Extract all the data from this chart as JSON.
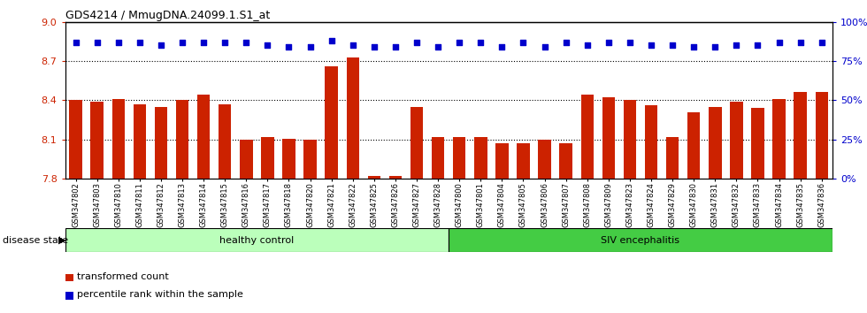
{
  "title": "GDS4214 / MmugDNA.24099.1.S1_at",
  "samples": [
    "GSM347802",
    "GSM347803",
    "GSM347810",
    "GSM347811",
    "GSM347812",
    "GSM347813",
    "GSM347814",
    "GSM347815",
    "GSM347816",
    "GSM347817",
    "GSM347818",
    "GSM347820",
    "GSM347821",
    "GSM347822",
    "GSM347825",
    "GSM347826",
    "GSM347827",
    "GSM347828",
    "GSM347800",
    "GSM347801",
    "GSM347804",
    "GSM347805",
    "GSM347806",
    "GSM347807",
    "GSM347808",
    "GSM347809",
    "GSM347823",
    "GSM347824",
    "GSM347829",
    "GSM347830",
    "GSM347831",
    "GSM347832",
    "GSM347833",
    "GSM347834",
    "GSM347835",
    "GSM347836"
  ],
  "bar_values": [
    8.4,
    8.39,
    8.41,
    8.37,
    8.35,
    8.4,
    8.44,
    8.37,
    8.1,
    8.12,
    8.105,
    8.1,
    8.66,
    8.73,
    7.82,
    7.82,
    8.35,
    8.12,
    8.12,
    8.12,
    8.07,
    8.07,
    8.1,
    8.07,
    8.44,
    8.42,
    8.4,
    8.36,
    8.12,
    8.31,
    8.35,
    8.39,
    8.34,
    8.41,
    8.46,
    8.46
  ],
  "percentile_values": [
    87,
    87,
    87,
    87,
    85,
    87,
    87,
    87,
    87,
    85,
    84,
    84,
    88,
    85,
    84,
    84,
    87,
    84,
    87,
    87,
    84,
    87,
    84,
    87,
    85,
    87,
    87,
    85,
    85,
    84,
    84,
    85,
    85,
    87,
    87,
    87
  ],
  "healthy_count": 18,
  "bar_color": "#cc2200",
  "dot_color": "#0000cc",
  "healthy_color": "#bbffbb",
  "siv_color": "#44cc44",
  "ylim_left": [
    7.8,
    9.0
  ],
  "ylim_right": [
    0,
    100
  ],
  "yticks_left": [
    7.8,
    8.1,
    8.4,
    8.7,
    9.0
  ],
  "yticks_right": [
    0,
    25,
    50,
    75,
    100
  ],
  "grid_values": [
    8.1,
    8.4,
    8.7
  ],
  "legend_items": [
    "transformed count",
    "percentile rank within the sample"
  ],
  "disease_state_label": "disease state",
  "group_labels": [
    "healthy control",
    "SIV encephalitis"
  ],
  "background_color": "#ffffff"
}
